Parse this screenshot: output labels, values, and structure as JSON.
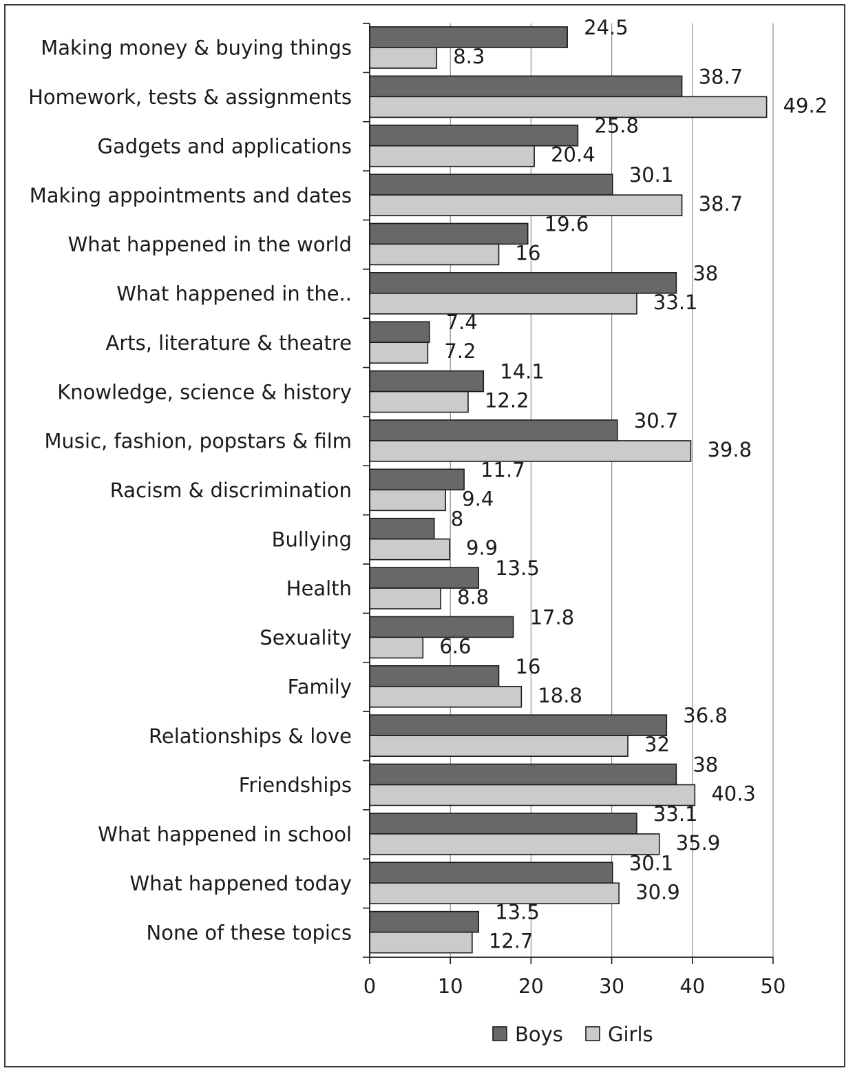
{
  "chart_data": {
    "type": "bar",
    "orientation": "horizontal",
    "title": "",
    "xlabel": "",
    "ylabel": "",
    "xlim": [
      0,
      50
    ],
    "xticks": [
      0,
      10,
      20,
      30,
      40,
      50
    ],
    "xtick_labels": [
      "0",
      "10",
      "20",
      "30",
      "40",
      "50"
    ],
    "grid": true,
    "legend_position": "bottom",
    "categories": [
      "Making money & buying things",
      "Homework, tests & assignments",
      "Gadgets and applications",
      "Making appointments and dates",
      "What happened in the world",
      "What happened in the..",
      "Arts, literature & theatre",
      "Knowledge, science & history",
      "Music, fashion, popstars & film",
      "Racism & discrimination",
      "Bullying",
      "Health",
      "Sexuality",
      "Family",
      "Relationships & love",
      "Friendships",
      "What happened in school",
      "What happened today",
      "None of these topics"
    ],
    "series": [
      {
        "name": "Boys",
        "color": "#686868",
        "values": [
          24.5,
          38.7,
          25.8,
          30.1,
          19.6,
          38,
          7.4,
          14.1,
          30.7,
          11.7,
          8,
          13.5,
          17.8,
          16,
          36.8,
          38,
          33.1,
          30.1,
          13.5
        ]
      },
      {
        "name": "Girls",
        "color": "#cbcbcb",
        "values": [
          8.3,
          49.2,
          20.4,
          38.7,
          16,
          33.1,
          7.2,
          12.2,
          39.8,
          9.4,
          9.9,
          8.8,
          6.6,
          18.8,
          32,
          40.3,
          35.9,
          30.9,
          12.7
        ]
      }
    ]
  }
}
